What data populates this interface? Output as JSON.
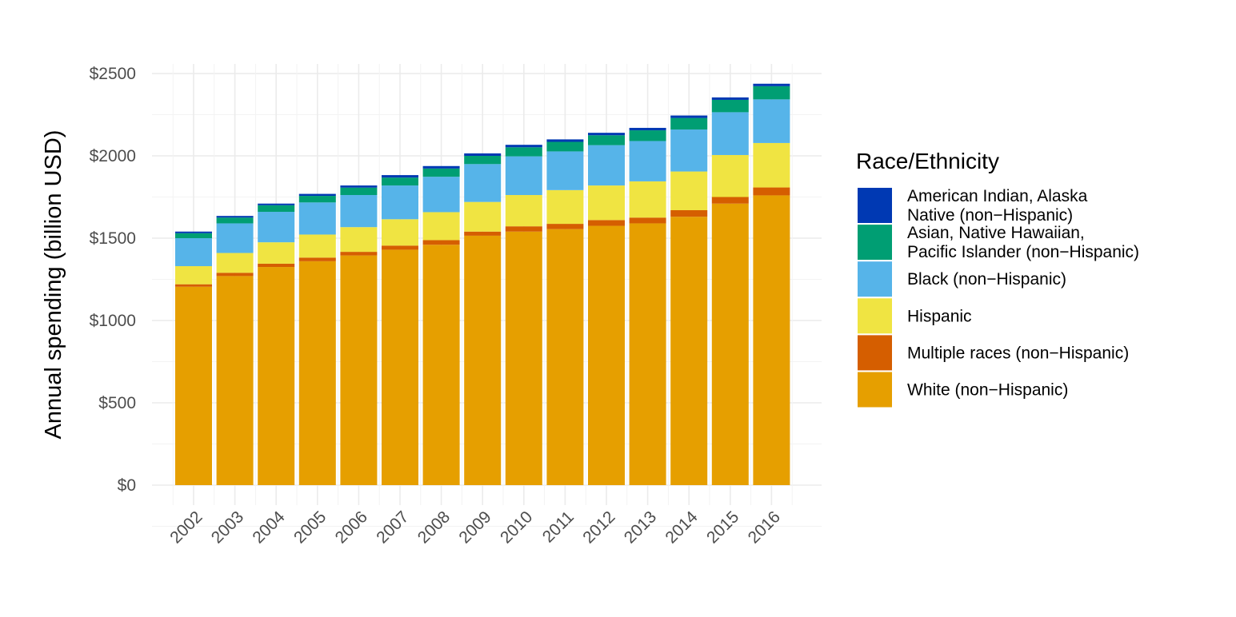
{
  "chart_data": {
    "type": "bar",
    "stacked": true,
    "title": "",
    "xlabel": "",
    "ylabel": "Annual spending (billion USD)",
    "ylim": [
      0,
      2500
    ],
    "yticks": [
      0,
      500,
      1000,
      1500,
      2000,
      2500
    ],
    "ytick_labels": [
      "$0",
      "$500",
      "$1000",
      "$1500",
      "$2000",
      "$2500"
    ],
    "grid": true,
    "legend_position": "right",
    "legend_title": "Race/Ethnicity",
    "categories": [
      "2002",
      "2003",
      "2004",
      "2005",
      "2006",
      "2007",
      "2008",
      "2009",
      "2010",
      "2011",
      "2012",
      "2013",
      "2014",
      "2015",
      "2016"
    ],
    "series": [
      {
        "key": "white",
        "name": "White (non−Hispanic)",
        "color": "#E69F00",
        "values": [
          1205,
          1270,
          1325,
          1360,
          1395,
          1430,
          1460,
          1515,
          1540,
          1555,
          1575,
          1590,
          1630,
          1710,
          1760
        ]
      },
      {
        "key": "multiple",
        "name": "Multiple races (non−Hispanic)",
        "color": "#D55E00",
        "values": [
          15,
          20,
          20,
          22,
          22,
          25,
          28,
          25,
          32,
          32,
          35,
          35,
          40,
          40,
          48
        ]
      },
      {
        "key": "hispanic",
        "name": "Hispanic",
        "color": "#F0E442",
        "values": [
          110,
          120,
          130,
          140,
          150,
          160,
          170,
          180,
          190,
          205,
          210,
          220,
          235,
          255,
          270
        ]
      },
      {
        "key": "black",
        "name": "Black (non−Hispanic)",
        "color": "#56B4E9",
        "values": [
          170,
          180,
          185,
          195,
          195,
          205,
          215,
          230,
          235,
          235,
          245,
          245,
          255,
          260,
          265
        ]
      },
      {
        "key": "asian",
        "name": "Asian, Native Hawaiian, Pacific Islander (non−Hispanic)",
        "color": "#009E73",
        "legend_lines": [
          "Asian, Native Hawaiian,",
          "Pacific Islander (non−Hispanic)"
        ],
        "values": [
          30,
          35,
          40,
          40,
          45,
          48,
          50,
          50,
          55,
          58,
          60,
          65,
          70,
          75,
          80
        ]
      },
      {
        "key": "aian",
        "name": "American Indian, Alaska Native (non−Hispanic)",
        "color": "#0039B3",
        "legend_lines": [
          "American Indian, Alaska",
          "Native (non−Hispanic)"
        ],
        "values": [
          10,
          10,
          10,
          12,
          13,
          15,
          15,
          15,
          15,
          15,
          15,
          15,
          15,
          15,
          15
        ]
      }
    ]
  }
}
